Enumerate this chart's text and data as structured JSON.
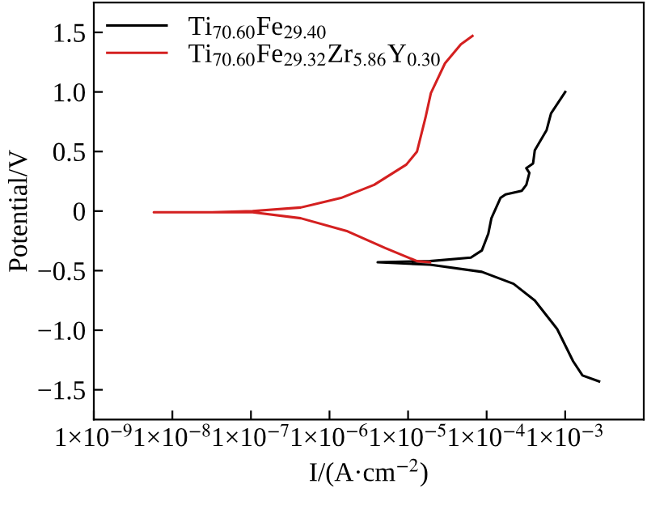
{
  "chart_data": {
    "type": "line",
    "xlabel": "I/(A·cm$^{−2}$)",
    "ylabel": "Potential/V",
    "log": "x",
    "grid": false,
    "legend": "top left",
    "line_style": "solid",
    "marker": "none",
    "xlim": [
      1e-09,
      0.01
    ],
    "ylim": [
      -1.75,
      1.75
    ],
    "xticks": [
      {
        "value": 1e-09,
        "label": "1×10$^{−9}$"
      },
      {
        "value": 1e-08,
        "label": "1×10$^{−8}$"
      },
      {
        "value": 1e-07,
        "label": "1×10$^{−7}$"
      },
      {
        "value": 1e-06,
        "label": "1×10$^{−6}$"
      },
      {
        "value": 1e-05,
        "label": "1×10$^{−5}$"
      },
      {
        "value": 0.0001,
        "label": "1×10$^{−4}$"
      },
      {
        "value": 0.001,
        "label": "1×10$^{−3}$"
      }
    ],
    "yticks": [
      {
        "value": 1.5,
        "label": "1.5"
      },
      {
        "value": 1,
        "label": "1.0"
      },
      {
        "value": 0.5,
        "label": "0.5"
      },
      0,
      {
        "value": -0.5,
        "label": "−0.5"
      },
      {
        "value": -1,
        "label": "−1.0"
      },
      {
        "value": -1.5,
        "label": "−1.5"
      }
    ],
    "series": [
      {
        "name": "Ti$_{70.60}$Fe$_{29.40}$",
        "color": "#000000",
        "x": [
          0.0027,
          0.00166,
          0.00126,
          0.00079,
          0.00041,
          0.00022,
          8.7e-05,
          1.9e-05,
          4.1e-06,
          1.9e-05,
          6.3e-05,
          8.7e-05,
          0.000105,
          0.000115,
          0.00015,
          0.000174,
          0.00028,
          0.00032,
          0.00035,
          0.00032,
          0.00039,
          0.00041,
          0.00058,
          0.00066,
          0.001
        ],
        "values": [
          -1.43,
          -1.38,
          -1.26,
          -0.99,
          -0.75,
          -0.61,
          -0.51,
          -0.45,
          -0.43,
          -0.42,
          -0.39,
          -0.33,
          -0.19,
          -0.06,
          0.11,
          0.14,
          0.17,
          0.22,
          0.32,
          0.36,
          0.4,
          0.51,
          0.68,
          0.82,
          1.0
        ]
      },
      {
        "name": "Ti$_{70.60}$Fe$_{29.32}$Zr$_{5.86}$Y$_{0.30}$",
        "color": "#d42020",
        "x": [
          1.9e-05,
          1.3e-05,
          5.1e-06,
          1.7e-06,
          4.3e-07,
          1.05e-07,
          5.8e-09,
          3.2e-08,
          1.05e-07,
          4.3e-07,
          1.4e-06,
          3.7e-06,
          9.5e-06,
          1.3e-05,
          1.66e-05,
          1.95e-05,
          2.95e-05,
          4.7e-05,
          6.6e-05
        ],
        "values": [
          -0.43,
          -0.42,
          -0.31,
          -0.17,
          -0.06,
          -0.01,
          -0.01,
          -0.01,
          0.0,
          0.03,
          0.11,
          0.22,
          0.39,
          0.5,
          0.78,
          0.99,
          1.24,
          1.4,
          1.47
        ]
      }
    ]
  }
}
